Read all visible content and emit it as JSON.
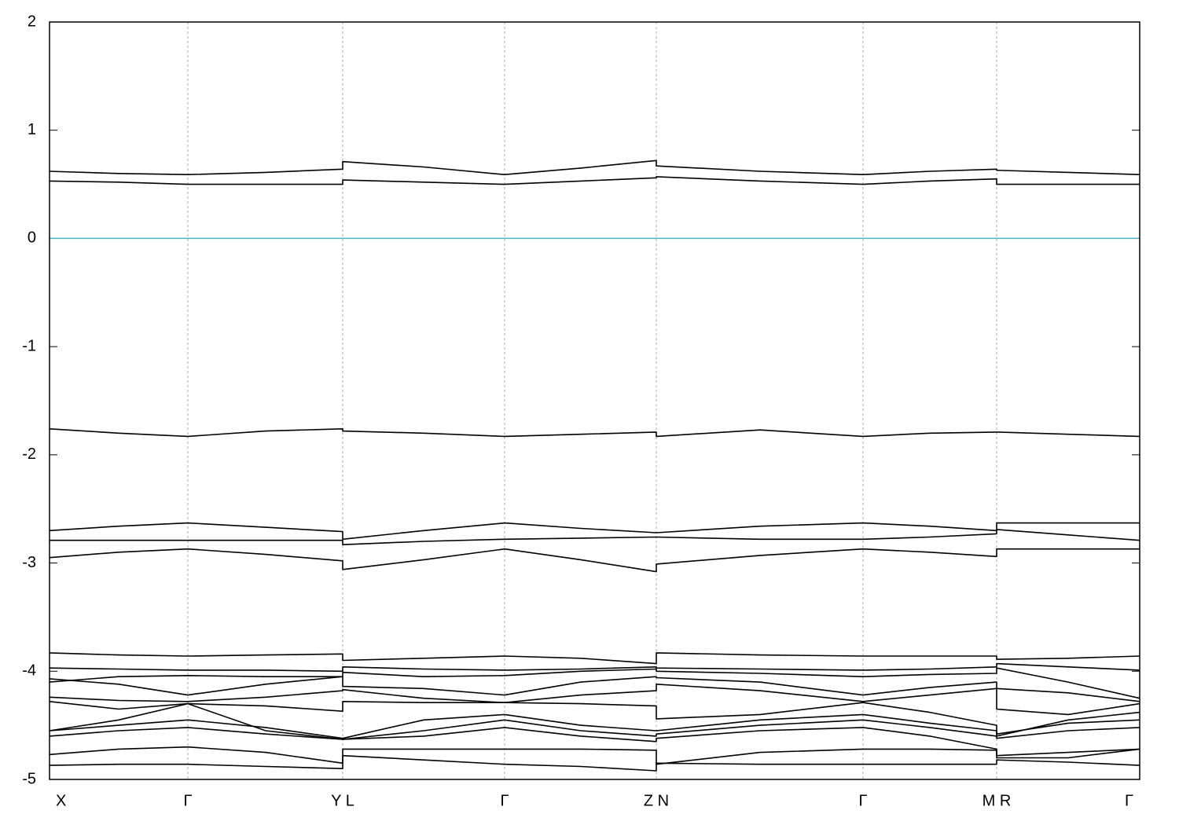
{
  "chart_data": {
    "type": "line",
    "x": [
      0,
      88,
      176,
      275,
      373,
      373,
      476,
      579,
      676,
      772,
      772,
      904,
      1035,
      1120,
      1205,
      1205,
      1296,
      1387
    ],
    "xlim": [
      0,
      1387
    ],
    "xticks": [
      {
        "value": 0,
        "label": "X"
      },
      {
        "value": 176,
        "label": "Γ"
      },
      {
        "value": 373,
        "label": "Y L"
      },
      {
        "value": 579,
        "label": "Γ"
      },
      {
        "value": 772,
        "label": "Z N"
      },
      {
        "value": 1035,
        "label": "Γ"
      },
      {
        "value": 1205,
        "label": "M R"
      },
      {
        "value": 1387,
        "label": "Γ"
      }
    ],
    "ylim": [
      -5,
      2
    ],
    "yticks": [
      2,
      1,
      0,
      -1,
      -2,
      -3,
      -4,
      -5
    ],
    "grid": "x",
    "reference_line": {
      "value": 0,
      "color": "#4eb3c7"
    },
    "series": [
      {
        "color": "#000000",
        "values": [
          0.62,
          0.6,
          0.59,
          0.61,
          0.64,
          0.71,
          0.66,
          0.59,
          0.65,
          0.72,
          0.67,
          0.62,
          0.59,
          0.62,
          0.64,
          0.63,
          0.61,
          0.59
        ]
      },
      {
        "color": "#000000",
        "values": [
          0.53,
          0.52,
          0.5,
          0.5,
          0.5,
          0.54,
          0.52,
          0.5,
          0.53,
          0.56,
          0.57,
          0.53,
          0.5,
          0.53,
          0.55,
          0.5,
          0.5,
          0.5
        ]
      },
      {
        "color": "#000000",
        "values": [
          -1.76,
          -1.8,
          -1.83,
          -1.78,
          -1.76,
          -1.78,
          -1.8,
          -1.83,
          -1.81,
          -1.79,
          -1.83,
          -1.77,
          -1.83,
          -1.8,
          -1.79,
          -1.79,
          -1.81,
          -1.83
        ]
      },
      {
        "color": "#000000",
        "values": [
          -2.7,
          -2.66,
          -2.63,
          -2.67,
          -2.71,
          -2.78,
          -2.7,
          -2.63,
          -2.68,
          -2.72,
          -2.72,
          -2.66,
          -2.63,
          -2.66,
          -2.7,
          -2.63,
          -2.63,
          -2.63
        ]
      },
      {
        "color": "#000000",
        "values": [
          -2.79,
          -2.79,
          -2.79,
          -2.79,
          -2.79,
          -2.83,
          -2.8,
          -2.78,
          -2.77,
          -2.76,
          -2.76,
          -2.78,
          -2.78,
          -2.76,
          -2.73,
          -2.69,
          -2.74,
          -2.79
        ]
      },
      {
        "color": "#000000",
        "values": [
          -2.95,
          -2.9,
          -2.87,
          -2.92,
          -2.98,
          -3.06,
          -2.97,
          -2.87,
          -2.97,
          -3.08,
          -3.01,
          -2.93,
          -2.87,
          -2.9,
          -2.94,
          -2.87,
          -2.87,
          -2.87
        ]
      },
      {
        "color": "#000000",
        "values": [
          -3.83,
          -3.85,
          -3.86,
          -3.85,
          -3.84,
          -3.9,
          -3.88,
          -3.86,
          -3.88,
          -3.93,
          -3.83,
          -3.85,
          -3.86,
          -3.86,
          -3.86,
          -3.89,
          -3.88,
          -3.86
        ]
      },
      {
        "color": "#000000",
        "values": [
          -3.97,
          -3.98,
          -3.99,
          -3.99,
          -4.0,
          -3.96,
          -3.98,
          -3.99,
          -3.98,
          -3.96,
          -3.97,
          -3.98,
          -3.99,
          -3.98,
          -3.96,
          -3.93,
          -3.96,
          -3.99
        ]
      },
      {
        "color": "#000000",
        "values": [
          -4.07,
          -4.12,
          -4.22,
          -4.12,
          -4.05,
          -4.01,
          -4.05,
          -4.04,
          -4.0,
          -3.98,
          -4.0,
          -4.02,
          -4.05,
          -4.03,
          -4.02,
          -3.97,
          -4.1,
          -4.25
        ]
      },
      {
        "color": "#000000",
        "values": [
          -4.1,
          -4.05,
          -4.04,
          -4.05,
          -4.05,
          -4.14,
          -4.16,
          -4.22,
          -4.1,
          -4.05,
          -4.06,
          -4.1,
          -4.22,
          -4.15,
          -4.1,
          -4.16,
          -4.2,
          -4.28
        ]
      },
      {
        "color": "#000000",
        "values": [
          -4.24,
          -4.27,
          -4.28,
          -4.24,
          -4.18,
          -4.17,
          -4.25,
          -4.29,
          -4.22,
          -4.18,
          -4.12,
          -4.18,
          -4.28,
          -4.22,
          -4.16,
          -4.35,
          -4.4,
          -4.3
        ]
      },
      {
        "color": "#000000",
        "values": [
          -4.28,
          -4.35,
          -4.3,
          -4.32,
          -4.37,
          -4.28,
          -4.29,
          -4.29,
          -4.3,
          -4.32,
          -4.44,
          -4.4,
          -4.29,
          -4.38,
          -4.5,
          -4.6,
          -4.45,
          -4.38
        ]
      },
      {
        "color": "#000000",
        "values": [
          -4.55,
          -4.45,
          -4.3,
          -4.55,
          -4.63,
          -4.62,
          -4.45,
          -4.4,
          -4.5,
          -4.55,
          -4.55,
          -4.45,
          -4.4,
          -4.48,
          -4.55,
          -4.58,
          -4.48,
          -4.45
        ]
      },
      {
        "color": "#000000",
        "values": [
          -4.55,
          -4.5,
          -4.45,
          -4.52,
          -4.62,
          -4.63,
          -4.55,
          -4.45,
          -4.55,
          -4.6,
          -4.58,
          -4.5,
          -4.45,
          -4.52,
          -4.6,
          -4.62,
          -4.55,
          -4.52
        ]
      },
      {
        "color": "#000000",
        "values": [
          -4.6,
          -4.55,
          -4.52,
          -4.58,
          -4.63,
          -4.63,
          -4.6,
          -4.52,
          -4.6,
          -4.65,
          -4.62,
          -4.55,
          -4.52,
          -4.6,
          -4.72,
          -4.78,
          -4.75,
          -4.72
        ]
      },
      {
        "color": "#000000",
        "values": [
          -4.77,
          -4.72,
          -4.7,
          -4.75,
          -4.85,
          -4.72,
          -4.72,
          -4.72,
          -4.72,
          -4.73,
          -4.86,
          -4.75,
          -4.72,
          -4.72,
          -4.73,
          -4.8,
          -4.8,
          -4.72
        ]
      },
      {
        "color": "#000000",
        "values": [
          -4.87,
          -4.86,
          -4.86,
          -4.88,
          -4.9,
          -4.78,
          -4.82,
          -4.86,
          -4.88,
          -4.92,
          -4.85,
          -4.86,
          -4.86,
          -4.86,
          -4.86,
          -4.82,
          -4.84,
          -4.87
        ]
      }
    ]
  }
}
